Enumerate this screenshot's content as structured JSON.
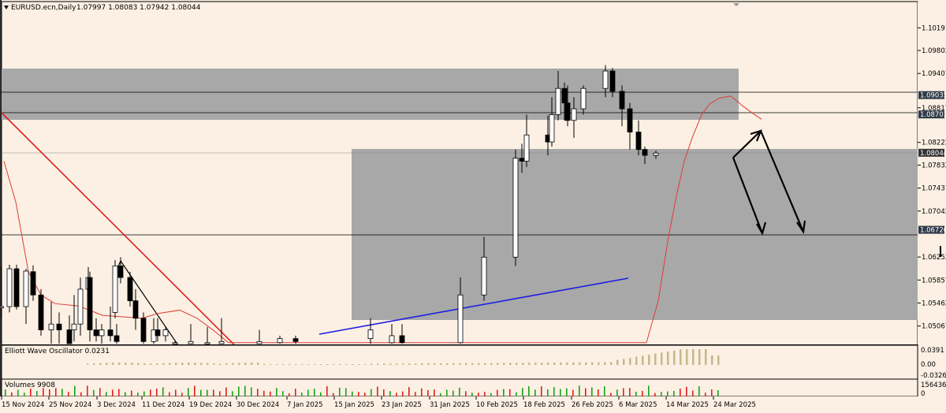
{
  "header": {
    "symbol": "EURUSD.ecn,Daily",
    "ohlc": "1.07997 1.08083 1.07942 1.08044"
  },
  "colors": {
    "background": "#fbf0e3",
    "zone": "#a8a8a8",
    "trendline_red": "#e02020",
    "trendline_blue": "#1d1de0",
    "moving_average": "#e03a3a",
    "oscillator": "#c9b78a",
    "volume_up": "#19a019",
    "volume_down": "#e01f1f"
  },
  "chart_data": [
    {
      "type": "candlestick",
      "title": "EURUSD.ecn,Daily",
      "ylim": [
        1.0475,
        1.1048
      ],
      "y_ticks": [
        "1.10191",
        "1.09802",
        "1.09407",
        "1.08817",
        "1.08222",
        "1.07832",
        "1.07437",
        "1.07042",
        "1.06252",
        "1.05857",
        "1.05462",
        "1.05067"
      ],
      "price_labels": [
        {
          "text": "1.09035",
          "value": 1.09035
        },
        {
          "text": "1.08703",
          "value": 1.08703
        },
        {
          "text": "1.08044",
          "value": 1.08044
        },
        {
          "text": "1.06720",
          "value": 1.0672
        }
      ],
      "x_ticks": [
        "15 Nov 2024",
        "25 Nov 2024",
        "3 Dec 2024",
        "11 Dec 2024",
        "19 Dec 2024",
        "30 Dec 2024",
        "7 Jan 2025",
        "15 Jan 2025",
        "23 Jan 2025",
        "31 Jan 2025",
        "10 Feb 2025",
        "18 Feb 2025",
        "26 Feb 2025",
        "6 Mar 2025",
        "14 Mar 2025",
        "24 Mar 2025"
      ],
      "candles": [
        {
          "o": 1.0538,
          "h": 1.061,
          "l": 1.052,
          "c": 1.054
        },
        {
          "o": 1.054,
          "h": 1.0612,
          "l": 1.053,
          "c": 1.0605
        },
        {
          "o": 1.0605,
          "h": 1.0612,
          "l": 1.0535,
          "c": 1.054
        },
        {
          "o": 1.054,
          "h": 1.0605,
          "l": 1.051,
          "c": 1.0601
        },
        {
          "o": 1.06,
          "h": 1.0611,
          "l": 1.055,
          "c": 1.056
        },
        {
          "o": 1.056,
          "h": 1.057,
          "l": 1.049,
          "c": 1.05
        },
        {
          "o": 1.05,
          "h": 1.0548,
          "l": 1.047,
          "c": 1.051
        },
        {
          "o": 1.051,
          "h": 1.053,
          "l": 1.0475,
          "c": 1.05
        },
        {
          "o": 1.05,
          "h": 1.0525,
          "l": 1.047,
          "c": 1.0475
        },
        {
          "o": 1.05,
          "h": 1.056,
          "l": 1.048,
          "c": 1.051
        },
        {
          "o": 1.051,
          "h": 1.059,
          "l": 1.049,
          "c": 1.057
        },
        {
          "o": 1.057,
          "h": 1.0608,
          "l": 1.055,
          "c": 1.059
        },
        {
          "o": 1.059,
          "h": 1.06,
          "l": 1.048,
          "c": 1.05
        },
        {
          "o": 1.05,
          "h": 1.052,
          "l": 1.048,
          "c": 1.049
        },
        {
          "o": 1.049,
          "h": 1.051,
          "l": 1.047,
          "c": 1.05
        },
        {
          "o": 1.05,
          "h": 1.054,
          "l": 1.048,
          "c": 1.049
        },
        {
          "o": 1.049,
          "h": 1.051,
          "l": 1.047,
          "c": 1.048
        },
        {
          "o": 1.053,
          "h": 1.062,
          "l": 1.052,
          "c": 1.061
        },
        {
          "o": 1.061,
          "h": 1.0625,
          "l": 1.058,
          "c": 1.059
        },
        {
          "o": 1.059,
          "h": 1.06,
          "l": 1.054,
          "c": 1.055
        },
        {
          "o": 1.055,
          "h": 1.057,
          "l": 1.05,
          "c": 1.052
        },
        {
          "o": 1.052,
          "h": 1.053,
          "l": 1.047,
          "c": 1.048
        },
        {
          "o": 1.048,
          "h": 1.052,
          "l": 1.047,
          "c": 1.05
        },
        {
          "o": 1.05,
          "h": 1.052,
          "l": 1.048,
          "c": 1.049
        },
        {
          "o": 1.049,
          "h": 1.0505,
          "l": 1.048,
          "c": 1.05
        },
        {
          "o": 1.0475,
          "h": 1.048,
          "l": 1.0475,
          "c": 1.0478
        },
        {
          "o": 1.0475,
          "h": 1.051,
          "l": 1.0475,
          "c": 1.048
        },
        {
          "o": 1.0475,
          "h": 1.0505,
          "l": 1.0475,
          "c": 1.0478
        },
        {
          "o": 1.0475,
          "h": 1.052,
          "l": 1.0475,
          "c": 1.048
        },
        {
          "o": 1.0475,
          "h": 1.05,
          "l": 1.0475,
          "c": 1.048
        },
        {
          "o": 1.0478,
          "h": 1.049,
          "l": 1.0475,
          "c": 1.0485
        },
        {
          "o": 1.0485,
          "h": 1.049,
          "l": 1.0475,
          "c": 1.048
        },
        {
          "o": 1.0485,
          "h": 1.052,
          "l": 1.0475,
          "c": 1.05
        },
        {
          "o": 1.0478,
          "h": 1.051,
          "l": 1.0475,
          "c": 1.049
        },
        {
          "o": 1.049,
          "h": 1.051,
          "l": 1.0475,
          "c": 1.0478
        },
        {
          "o": 1.0478,
          "h": 1.059,
          "l": 1.0475,
          "c": 1.056
        },
        {
          "o": 1.056,
          "h": 1.066,
          "l": 1.055,
          "c": 1.0625
        },
        {
          "o": 1.0625,
          "h": 1.081,
          "l": 1.061,
          "c": 1.0795
        },
        {
          "o": 1.0795,
          "h": 1.082,
          "l": 1.077,
          "c": 1.079
        },
        {
          "o": 1.079,
          "h": 1.087,
          "l": 1.078,
          "c": 1.0835
        },
        {
          "o": 1.0835,
          "h": 1.0868,
          "l": 1.08,
          "c": 1.0823
        },
        {
          "o": 1.0823,
          "h": 1.09,
          "l": 1.0815,
          "c": 1.087
        },
        {
          "o": 1.087,
          "h": 1.0945,
          "l": 1.086,
          "c": 1.0915
        },
        {
          "o": 1.0915,
          "h": 1.0925,
          "l": 1.086,
          "c": 1.089
        },
        {
          "o": 1.089,
          "h": 1.092,
          "l": 1.085,
          "c": 1.086
        },
        {
          "o": 1.086,
          "h": 1.09,
          "l": 1.083,
          "c": 1.088
        },
        {
          "o": 1.088,
          "h": 1.092,
          "l": 1.087,
          "c": 1.0915
        },
        {
          "o": 1.0915,
          "h": 1.0955,
          "l": 1.09,
          "c": 1.0945
        },
        {
          "o": 1.0945,
          "h": 1.095,
          "l": 1.09,
          "c": 1.091
        },
        {
          "o": 1.091,
          "h": 1.092,
          "l": 1.085,
          "c": 1.088
        },
        {
          "o": 1.088,
          "h": 1.089,
          "l": 1.081,
          "c": 1.084
        },
        {
          "o": 1.084,
          "h": 1.086,
          "l": 1.08,
          "c": 1.081
        },
        {
          "o": 1.081,
          "h": 1.0815,
          "l": 1.0785,
          "c": 1.08
        },
        {
          "o": 1.08,
          "h": 1.0808,
          "l": 1.0794,
          "c": 1.0804
        }
      ],
      "candle_x": [
        1.5,
        12,
        21,
        33,
        42,
        52,
        65,
        75,
        88,
        94,
        102,
        112,
        114,
        122,
        129,
        140,
        148,
        146,
        153,
        165,
        172,
        182,
        195,
        200,
        210,
        222,
        242,
        263,
        281,
        329,
        355,
        375,
        470,
        497,
        510,
        584,
        614,
        654,
        662,
        668,
        695,
        700,
        708,
        716,
        720,
        728,
        740,
        768,
        777,
        789,
        799,
        810,
        818,
        832,
        840,
        847,
        855,
        862,
        870,
        878,
        884,
        893,
        900,
        908,
        918
      ],
      "candle_x_map": [
        0,
        1,
        2,
        3,
        4,
        5,
        6,
        7,
        8,
        10,
        11,
        12,
        13,
        14,
        15,
        16,
        18,
        17,
        19,
        20,
        21,
        22,
        23,
        24,
        25,
        26,
        27,
        28,
        29,
        30,
        31,
        32,
        33,
        34,
        35,
        36,
        37,
        38,
        39,
        40,
        41,
        42,
        43,
        44,
        45,
        46,
        47,
        48,
        49,
        50,
        51,
        52,
        53,
        53,
        53,
        53,
        53,
        53,
        53,
        53,
        53,
        53,
        53,
        53,
        53
      ],
      "moving_average": [
        [
          5,
          1.079
        ],
        [
          20,
          1.072
        ],
        [
          36,
          1.06
        ],
        [
          52,
          1.056
        ],
        [
          70,
          1.0545
        ],
        [
          100,
          1.0541
        ],
        [
          130,
          1.0525
        ],
        [
          180,
          1.052
        ],
        [
          200,
          1.0528
        ],
        [
          228,
          1.0534
        ],
        [
          250,
          1.052
        ],
        [
          270,
          1.05
        ],
        [
          290,
          1.0478
        ],
        [
          820,
          1.0478
        ],
        [
          835,
          1.055
        ],
        [
          848,
          1.066
        ],
        [
          858,
          1.073
        ],
        [
          868,
          1.079
        ],
        [
          878,
          1.083
        ],
        [
          890,
          1.087
        ],
        [
          900,
          1.0888
        ],
        [
          912,
          1.0898
        ],
        [
          927,
          1.0902
        ],
        [
          942,
          1.0885
        ],
        [
          955,
          1.0872
        ],
        [
          966,
          1.0862
        ]
      ]
    },
    {
      "type": "bar",
      "title": "Elliott Wave Oscillator 0.0231",
      "y_ticks": [
        "0.0391",
        "0.00",
        "-0.0326"
      ],
      "ylim": [
        -0.0326,
        0.0391
      ]
    },
    {
      "type": "bar",
      "title": "Volumes 9908",
      "y_ticks": [
        "156436",
        "0"
      ],
      "ylim": [
        0,
        156436
      ]
    }
  ]
}
